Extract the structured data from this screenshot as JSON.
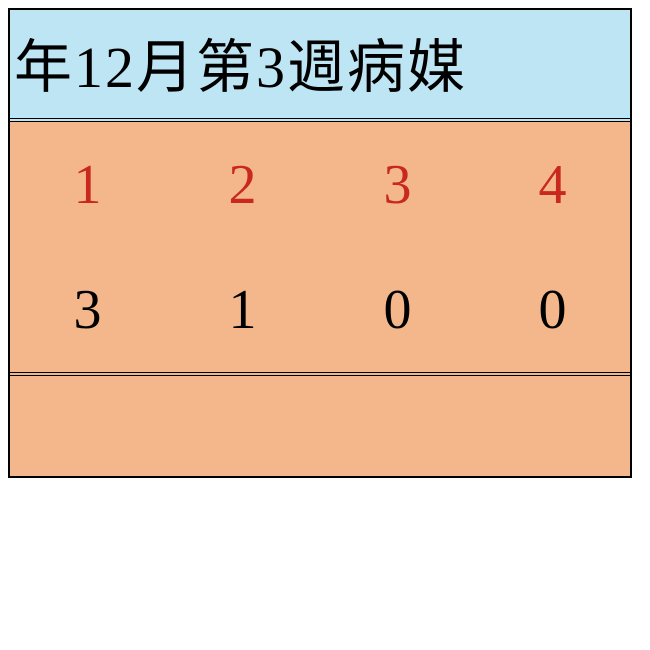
{
  "title": "年12月第3週病媒",
  "table": {
    "header_color": "#c8281e",
    "value_color": "#000000",
    "title_bg": "#bee5f3",
    "body_bg": "#f3b78b",
    "columns": [
      "1",
      "2",
      "3",
      "4"
    ],
    "rows": [
      [
        "3",
        "1",
        "0",
        "0"
      ]
    ]
  }
}
